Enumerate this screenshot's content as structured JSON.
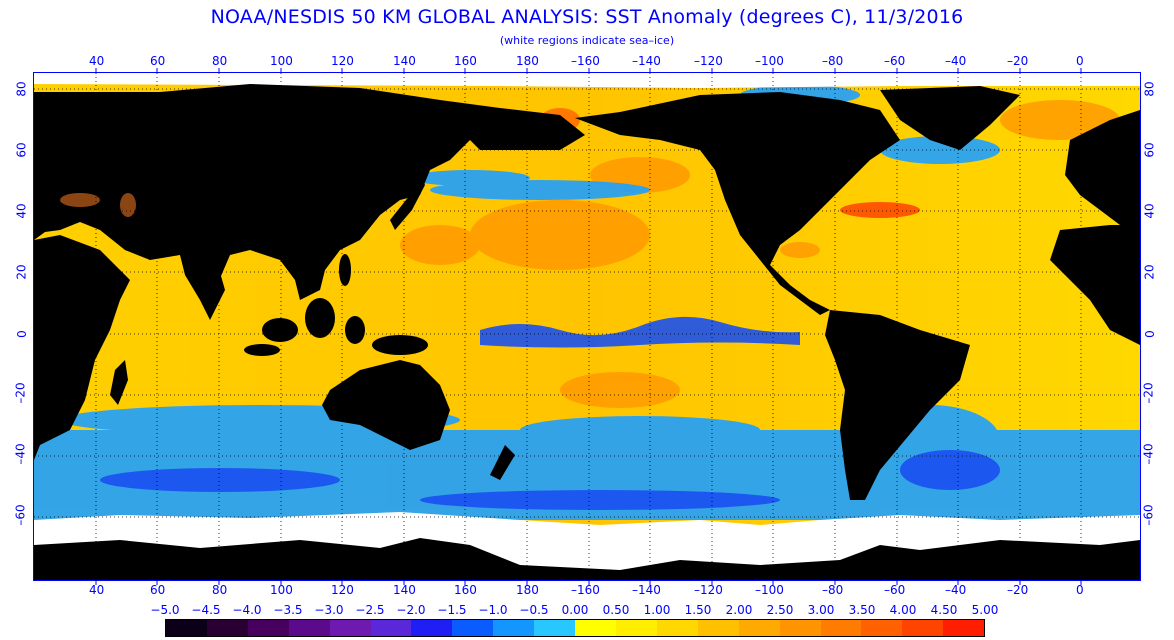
{
  "title": "NOAA/NESDIS 50 KM GLOBAL ANALYSIS: SST Anomaly (degrees C), 11/3/2016",
  "subtitle": "(white regions indicate sea–ice)",
  "axis": {
    "lon_labels": [
      "40",
      "60",
      "80",
      "100",
      "120",
      "140",
      "160",
      "180",
      "–160",
      "–140",
      "–120",
      "–100",
      "–80",
      "–60",
      "–40",
      "–20",
      "0"
    ],
    "lat_labels": [
      "80",
      "60",
      "40",
      "20",
      "0",
      "–20",
      "–40",
      "–60"
    ]
  },
  "colorbar": {
    "labels": [
      "−5.0",
      "−4.5",
      "−4.0",
      "−3.5",
      "−3.0",
      "−2.5",
      "−2.0",
      "−1.5",
      "−1.0",
      "−0.5",
      "0.00",
      "0.50",
      "1.00",
      "1.50",
      "2.00",
      "2.50",
      "3.00",
      "3.50",
      "4.00",
      "4.50",
      "5.00"
    ],
    "colors": [
      "#0b0018",
      "#2a0033",
      "#47005e",
      "#5a0a8a",
      "#6e1ab0",
      "#5a28d8",
      "#1e1ef5",
      "#0a5cff",
      "#1496ff",
      "#28c8ff",
      "#ffff00",
      "#ffee00",
      "#ffd800",
      "#ffc000",
      "#ffaa00",
      "#ff9400",
      "#ff7c00",
      "#ff6000",
      "#ff4400",
      "#ff1e00"
    ]
  },
  "colors": {
    "land": "#000000",
    "seaice": "#ffffff",
    "ocean_warm": "#ffd400",
    "ocean_hot": "#ff9a00",
    "ocean_cool": "#1ea0ff",
    "ocean_cold": "#1a50f0",
    "grid": "#000000",
    "axis": "#0000ff"
  }
}
